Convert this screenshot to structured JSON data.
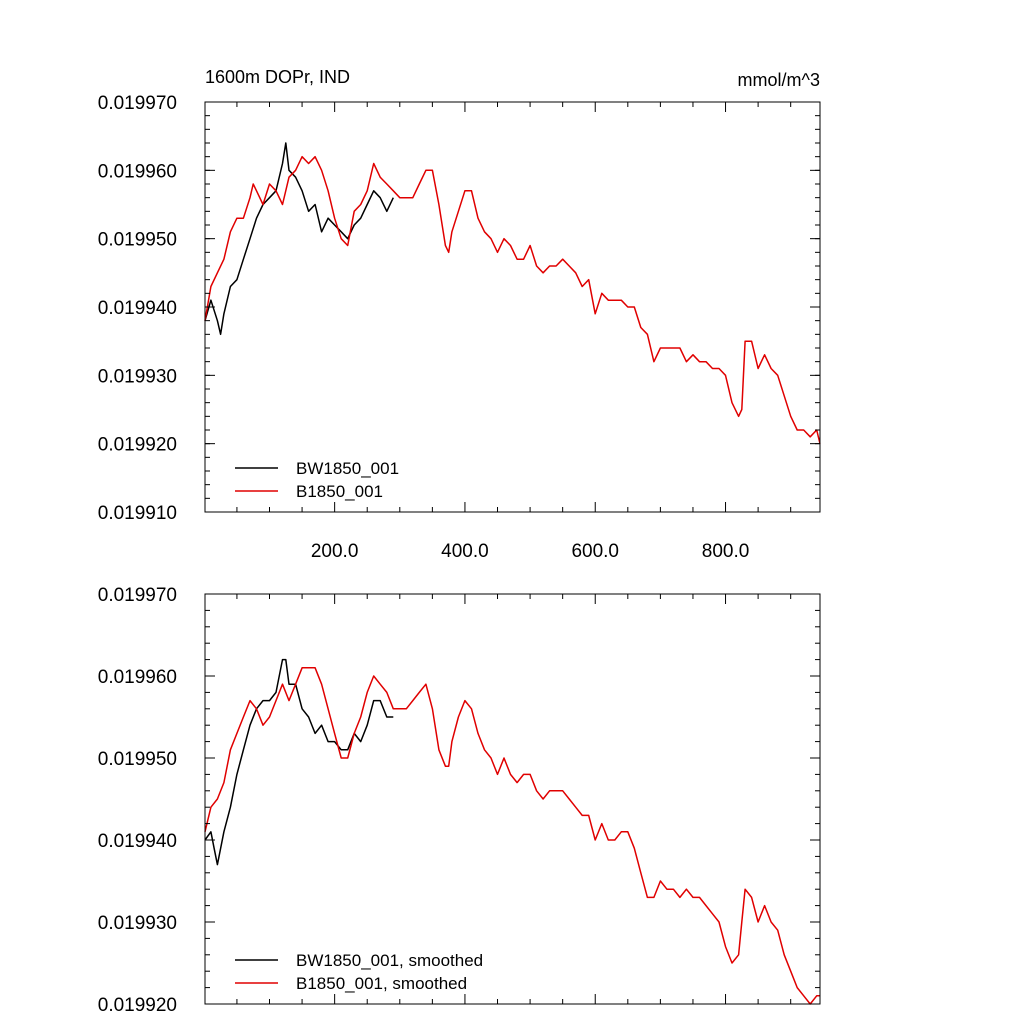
{
  "colors": {
    "series_1": "#000000",
    "series_2": "#e00000",
    "frame": "#000000",
    "background": "#ffffff"
  },
  "chart_data": [
    {
      "type": "line",
      "title_left": "1600m DOPr, IND",
      "title_right": "mmol/m^3",
      "xlim": [
        1,
        945
      ],
      "ylim": [
        0.01991,
        0.01997
      ],
      "xticks": [
        200,
        400,
        600,
        800
      ],
      "xtick_labels": [
        "200.0",
        "400.0",
        "600.0",
        "800.0"
      ],
      "yticks": [
        0.01991,
        0.01992,
        0.01993,
        0.01994,
        0.01995,
        0.01996,
        0.01997
      ],
      "ytick_labels": [
        "0.019910",
        "0.019920",
        "0.019930",
        "0.019940",
        "0.019950",
        "0.019960",
        "0.019970"
      ],
      "legend_position": "bottom-left",
      "grid": false,
      "series": [
        {
          "name": "BW1850_001",
          "color": "#000000",
          "x": [
            1,
            10,
            20,
            25,
            30,
            40,
            50,
            60,
            70,
            80,
            90,
            100,
            110,
            120,
            125,
            130,
            140,
            150,
            160,
            170,
            180,
            190,
            200,
            210,
            220,
            230,
            240,
            250,
            260,
            270,
            280,
            290
          ],
          "y": [
            0.019938,
            0.019941,
            0.019938,
            0.019936,
            0.019939,
            0.019943,
            0.019944,
            0.019947,
            0.01995,
            0.019953,
            0.019955,
            0.019956,
            0.019957,
            0.019961,
            0.019964,
            0.01996,
            0.019959,
            0.019957,
            0.019954,
            0.019955,
            0.019951,
            0.019953,
            0.019952,
            0.019951,
            0.01995,
            0.019952,
            0.019953,
            0.019955,
            0.019957,
            0.019956,
            0.019954,
            0.019956
          ]
        },
        {
          "name": "B1850_001",
          "color": "#e00000",
          "x": [
            1,
            10,
            20,
            30,
            40,
            50,
            60,
            70,
            75,
            80,
            90,
            100,
            110,
            120,
            130,
            140,
            150,
            160,
            170,
            180,
            190,
            200,
            210,
            220,
            230,
            240,
            250,
            260,
            270,
            280,
            290,
            300,
            310,
            320,
            330,
            340,
            350,
            360,
            370,
            375,
            380,
            390,
            400,
            410,
            420,
            430,
            440,
            450,
            460,
            470,
            480,
            490,
            500,
            510,
            520,
            530,
            540,
            550,
            560,
            570,
            580,
            590,
            600,
            610,
            620,
            630,
            640,
            650,
            660,
            670,
            680,
            690,
            700,
            710,
            720,
            730,
            740,
            750,
            760,
            770,
            780,
            790,
            800,
            810,
            820,
            825,
            830,
            840,
            850,
            860,
            870,
            880,
            890,
            900,
            910,
            920,
            930,
            940,
            945
          ],
          "y": [
            0.019938,
            0.019943,
            0.019945,
            0.019947,
            0.019951,
            0.019953,
            0.019953,
            0.019956,
            0.019958,
            0.019957,
            0.019955,
            0.019958,
            0.019957,
            0.019955,
            0.019959,
            0.01996,
            0.019962,
            0.019961,
            0.019962,
            0.01996,
            0.019957,
            0.019953,
            0.01995,
            0.019949,
            0.019954,
            0.019955,
            0.019957,
            0.019961,
            0.019959,
            0.019958,
            0.019957,
            0.019956,
            0.019956,
            0.019956,
            0.019958,
            0.01996,
            0.01996,
            0.019955,
            0.019949,
            0.019948,
            0.019951,
            0.019954,
            0.019957,
            0.019957,
            0.019953,
            0.019951,
            0.01995,
            0.019948,
            0.01995,
            0.019949,
            0.019947,
            0.019947,
            0.019949,
            0.019946,
            0.019945,
            0.019946,
            0.019946,
            0.019947,
            0.019946,
            0.019945,
            0.019943,
            0.019944,
            0.019939,
            0.019942,
            0.019941,
            0.019941,
            0.019941,
            0.01994,
            0.01994,
            0.019937,
            0.019936,
            0.019932,
            0.019934,
            0.019934,
            0.019934,
            0.019934,
            0.019932,
            0.019933,
            0.019932,
            0.019932,
            0.019931,
            0.019931,
            0.01993,
            0.019926,
            0.019924,
            0.019925,
            0.019935,
            0.019935,
            0.019931,
            0.019933,
            0.019931,
            0.01993,
            0.019927,
            0.019924,
            0.019922,
            0.019922,
            0.019921,
            0.019922,
            0.01992
          ]
        }
      ]
    },
    {
      "type": "line",
      "xlim": [
        1,
        945
      ],
      "ylim": [
        0.01992,
        0.01997
      ],
      "xticks": [
        200,
        400,
        600,
        800
      ],
      "yticks": [
        0.01992,
        0.01993,
        0.01994,
        0.01995,
        0.01996,
        0.01997
      ],
      "ytick_labels": [
        "0.019920",
        "0.019930",
        "0.019940",
        "0.019950",
        "0.019960",
        "0.019970"
      ],
      "legend_position": "bottom-left",
      "grid": false,
      "series": [
        {
          "name": "BW1850_001, smoothed",
          "color": "#000000",
          "x": [
            1,
            10,
            15,
            20,
            30,
            40,
            50,
            60,
            70,
            80,
            90,
            100,
            110,
            120,
            125,
            130,
            140,
            150,
            160,
            170,
            180,
            190,
            200,
            210,
            220,
            230,
            240,
            250,
            260,
            270,
            280,
            290
          ],
          "y": [
            0.01994,
            0.019941,
            0.019939,
            0.019937,
            0.019941,
            0.019944,
            0.019948,
            0.019951,
            0.019954,
            0.019956,
            0.019957,
            0.019957,
            0.019958,
            0.019962,
            0.019962,
            0.019959,
            0.019959,
            0.019956,
            0.019955,
            0.019953,
            0.019954,
            0.019952,
            0.019952,
            0.019951,
            0.019951,
            0.019953,
            0.019952,
            0.019954,
            0.019957,
            0.019957,
            0.019955,
            0.019955
          ]
        },
        {
          "name": "B1850_001, smoothed",
          "color": "#e00000",
          "x": [
            1,
            10,
            20,
            30,
            40,
            50,
            60,
            70,
            80,
            90,
            100,
            110,
            120,
            130,
            140,
            150,
            160,
            170,
            180,
            190,
            200,
            210,
            220,
            230,
            240,
            250,
            260,
            270,
            280,
            290,
            300,
            310,
            320,
            330,
            340,
            350,
            360,
            370,
            375,
            380,
            390,
            400,
            410,
            420,
            430,
            440,
            450,
            460,
            470,
            480,
            490,
            500,
            510,
            520,
            530,
            540,
            550,
            560,
            570,
            580,
            590,
            600,
            610,
            620,
            630,
            640,
            650,
            660,
            670,
            680,
            690,
            700,
            710,
            720,
            730,
            740,
            750,
            760,
            770,
            780,
            790,
            800,
            810,
            820,
            825,
            830,
            840,
            850,
            860,
            870,
            880,
            890,
            900,
            910,
            920,
            930,
            940,
            945
          ],
          "y": [
            0.019941,
            0.019944,
            0.019945,
            0.019947,
            0.019951,
            0.019953,
            0.019955,
            0.019957,
            0.019956,
            0.019954,
            0.019955,
            0.019957,
            0.019959,
            0.019957,
            0.019959,
            0.019961,
            0.019961,
            0.019961,
            0.019959,
            0.019956,
            0.019953,
            0.01995,
            0.01995,
            0.019953,
            0.019955,
            0.019958,
            0.01996,
            0.019959,
            0.019958,
            0.019956,
            0.019956,
            0.019956,
            0.019957,
            0.019958,
            0.019959,
            0.019956,
            0.019951,
            0.019949,
            0.019949,
            0.019952,
            0.019955,
            0.019957,
            0.019956,
            0.019953,
            0.019951,
            0.01995,
            0.019948,
            0.01995,
            0.019948,
            0.019947,
            0.019948,
            0.019948,
            0.019946,
            0.019945,
            0.019946,
            0.019946,
            0.019946,
            0.019945,
            0.019944,
            0.019943,
            0.019943,
            0.01994,
            0.019942,
            0.01994,
            0.01994,
            0.019941,
            0.019941,
            0.019939,
            0.019936,
            0.019933,
            0.019933,
            0.019935,
            0.019934,
            0.019934,
            0.019933,
            0.019934,
            0.019933,
            0.019933,
            0.019932,
            0.019931,
            0.01993,
            0.019927,
            0.019925,
            0.019926,
            0.01993,
            0.019934,
            0.019933,
            0.01993,
            0.019932,
            0.01993,
            0.019929,
            0.019926,
            0.019924,
            0.019922,
            0.019921,
            0.01992,
            0.019921,
            0.019921
          ]
        }
      ]
    }
  ]
}
